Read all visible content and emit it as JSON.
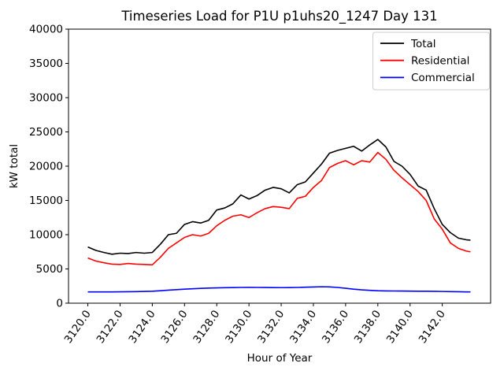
{
  "chart_data": {
    "type": "line",
    "title": "Timeseries Load for P1U p1uhs20_1247  Day 131",
    "xlabel": "Hour of Year",
    "ylabel": "kW total",
    "xlim": [
      3118.8,
      3145.0
    ],
    "ylim": [
      0,
      40000
    ],
    "grid": false,
    "yticks": [
      0,
      5000,
      10000,
      15000,
      20000,
      25000,
      30000,
      35000,
      40000
    ],
    "ytick_labels": [
      "0",
      "5000",
      "10000",
      "15000",
      "20000",
      "25000",
      "30000",
      "35000",
      "40000"
    ],
    "xticks": [
      3120,
      3122,
      3124,
      3126,
      3128,
      3130,
      3132,
      3134,
      3136,
      3138,
      3140,
      3142
    ],
    "xtick_labels": [
      "3120.0",
      "3122.0",
      "3124.0",
      "3126.0",
      "3128.0",
      "3130.0",
      "3132.0",
      "3134.0",
      "3136.0",
      "3138.0",
      "3140.0",
      "3142.0"
    ],
    "legend": {
      "position": "upper-right",
      "entries": [
        "Total",
        "Residential",
        "Commercial"
      ]
    },
    "x": [
      3120.0,
      3120.5,
      3121.0,
      3121.5,
      3122.0,
      3122.5,
      3123.0,
      3123.5,
      3124.0,
      3124.5,
      3125.0,
      3125.5,
      3126.0,
      3126.5,
      3127.0,
      3127.5,
      3128.0,
      3128.5,
      3129.0,
      3129.5,
      3130.0,
      3130.5,
      3131.0,
      3131.5,
      3132.0,
      3132.5,
      3133.0,
      3133.5,
      3134.0,
      3134.5,
      3135.0,
      3135.5,
      3136.0,
      3136.5,
      3137.0,
      3137.5,
      3138.0,
      3138.5,
      3139.0,
      3139.5,
      3140.0,
      3140.5,
      3141.0,
      3141.5,
      3142.0,
      3142.5,
      3143.0,
      3143.5,
      3143.75
    ],
    "series": [
      {
        "name": "Total",
        "color": "#000000",
        "values": [
          8200,
          7700,
          7400,
          7150,
          7300,
          7250,
          7400,
          7300,
          7400,
          8600,
          10000,
          10200,
          11500,
          11900,
          11700,
          12100,
          13600,
          13900,
          14500,
          15800,
          15200,
          15700,
          16500,
          16900,
          16700,
          16100,
          17300,
          17700,
          19000,
          20300,
          21900,
          22300,
          22600,
          22900,
          22200,
          23100,
          23900,
          22800,
          20700,
          20000,
          18800,
          17100,
          16500,
          13800,
          11500,
          10300,
          9500,
          9250,
          9200
        ]
      },
      {
        "name": "Residential",
        "color": "#ff0000",
        "values": [
          6600,
          6150,
          5900,
          5700,
          5650,
          5800,
          5700,
          5650,
          5600,
          6700,
          8000,
          8800,
          9600,
          10000,
          9800,
          10200,
          11300,
          12100,
          12700,
          12900,
          12500,
          13200,
          13800,
          14100,
          14000,
          13800,
          15300,
          15600,
          16900,
          17900,
          19800,
          20400,
          20800,
          20200,
          20800,
          20600,
          22000,
          21000,
          19400,
          18300,
          17300,
          16300,
          15000,
          12300,
          10800,
          8800,
          8000,
          7600,
          7500
        ]
      },
      {
        "name": "Commercial",
        "color": "#0000ff",
        "values": [
          1650,
          1640,
          1640,
          1650,
          1660,
          1670,
          1690,
          1720,
          1750,
          1820,
          1900,
          1980,
          2050,
          2110,
          2160,
          2200,
          2230,
          2260,
          2280,
          2300,
          2310,
          2300,
          2290,
          2280,
          2270,
          2280,
          2300,
          2330,
          2360,
          2400,
          2380,
          2300,
          2180,
          2050,
          1950,
          1880,
          1820,
          1790,
          1780,
          1770,
          1760,
          1750,
          1740,
          1730,
          1710,
          1690,
          1670,
          1650,
          1640
        ]
      }
    ]
  }
}
